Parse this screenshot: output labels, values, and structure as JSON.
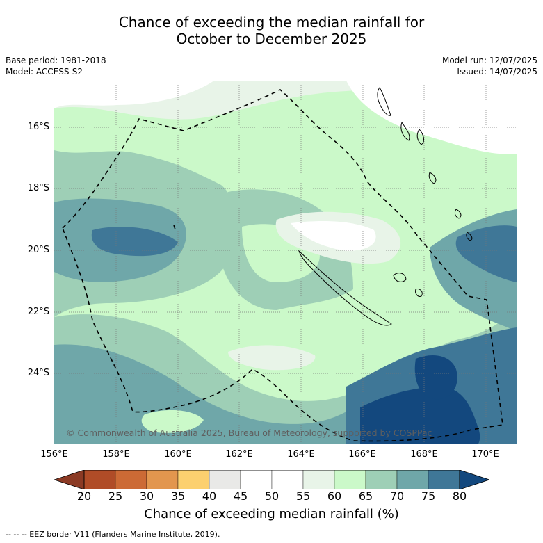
{
  "title": {
    "line1": "Chance of exceeding the median rainfall for",
    "line2": "October to December 2025"
  },
  "meta": {
    "base_period": "Base period: 1981-2018",
    "model": "Model: ACCESS-S2",
    "model_run": "Model run: 12/07/2025",
    "issued": "Issued: 14/07/2025"
  },
  "map": {
    "credit": "© Commonwealth of Australia 2025, Bureau of Meteorology, supported by COSPPac",
    "lat_labels": [
      "16°S",
      "18°S",
      "20°S",
      "22°S",
      "24°S"
    ],
    "lon_labels": [
      "156°E",
      "158°E",
      "160°E",
      "162°E",
      "164°E",
      "166°E",
      "168°E",
      "170°E"
    ],
    "eez_border": "EEZ border"
  },
  "colorbar": {
    "ticks": [
      "20",
      "25",
      "30",
      "35",
      "40",
      "45",
      "50",
      "55",
      "60",
      "65",
      "70",
      "75",
      "80"
    ],
    "colors": [
      "#8b3a24",
      "#b04c27",
      "#cc6a35",
      "#e2964e",
      "#fcd06f",
      "#e9e9e7",
      "#ffffff",
      "#ffffff",
      "#e8f4e8",
      "#cbf9c9",
      "#9ecfb6",
      "#6fa7a9",
      "#3f7797",
      "#13487e"
    ],
    "title": "Chance of exceeding median rainfall (%)"
  },
  "legend": {
    "text": "--  --  -- EEZ border V11 (Flanders Marine Institute, 2019)."
  }
}
